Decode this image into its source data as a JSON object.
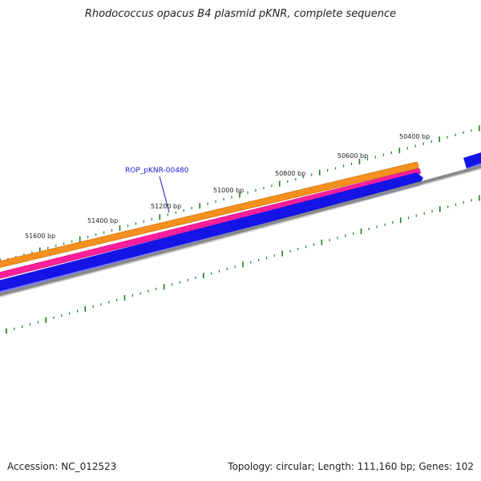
{
  "title": "Rhodococcus opacus B4 plasmid pKNR, complete sequence",
  "footer": {
    "accession": "Accession: NC_012523",
    "summary": "Topology: circular; Length: 111,160 bp; Genes: 102"
  },
  "gene_label": "ROP_pKNR-00480",
  "scale_labels": [
    "50400 bp",
    "50600 bp",
    "50800 bp",
    "51000 bp",
    "51200 bp",
    "51400 bp",
    "51600 bp"
  ],
  "colors": {
    "orange_track": "#f5901e",
    "pink_track": "#ff1e9b",
    "blue_feature": "#1414e6",
    "backbone": "#8a8a8a",
    "tick": "#1e7d1e",
    "label_blue": "#1a1ad6"
  }
}
